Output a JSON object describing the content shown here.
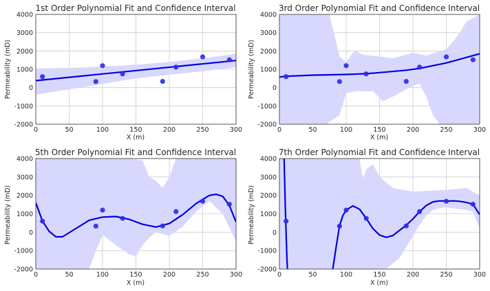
{
  "figure": {
    "background": "#ffffff",
    "axes_face": "#ffffff",
    "grid_color": "#cccccc",
    "fit_color": "#0000dd",
    "band_color": "#d8d8ff",
    "point_color": "#2a2ae8"
  },
  "chart_data": [
    {
      "type": "scatter",
      "title": "1st Order Polynomial Fit and Confidence Interval",
      "xlabel": "X (m)",
      "ylabel": "Permeability (mD)",
      "xlim": [
        0,
        300
      ],
      "ylim": [
        -2000,
        4000
      ],
      "xticks": [
        "0",
        "50",
        "100",
        "150",
        "200",
        "250",
        "300"
      ],
      "yticks": [
        "-2000",
        "-1000",
        "0",
        "1000",
        "2000",
        "3000",
        "4000"
      ],
      "grid": true,
      "points": {
        "x": [
          10,
          90,
          100,
          130,
          190,
          210,
          250,
          290
        ],
        "y": [
          600,
          330,
          1200,
          750,
          340,
          1120,
          1680,
          1520
        ]
      },
      "fit": {
        "x": [
          0,
          300
        ],
        "y": [
          380,
          1480
        ]
      },
      "band_upper": {
        "x": [
          0,
          50,
          100,
          150,
          200,
          250,
          300
        ],
        "y": [
          1050,
          1080,
          1150,
          1250,
          1400,
          1600,
          1850
        ]
      },
      "band_lower": {
        "x": [
          0,
          50,
          100,
          150,
          200,
          250,
          300
        ],
        "y": [
          -380,
          -100,
          200,
          500,
          700,
          900,
          1100
        ]
      }
    },
    {
      "type": "scatter",
      "title": "3rd Order Polynomial Fit and Confidence Interval",
      "xlabel": "X (m)",
      "ylabel": "Permeability (mD)",
      "xlim": [
        0,
        300
      ],
      "ylim": [
        -2000,
        4000
      ],
      "xticks": [
        "0",
        "50",
        "100",
        "150",
        "200",
        "250",
        "300"
      ],
      "yticks": [
        "-2000",
        "-1000",
        "0",
        "1000",
        "2000",
        "3000",
        "4000"
      ],
      "grid": true,
      "points": {
        "x": [
          10,
          90,
          100,
          130,
          190,
          210,
          250,
          290
        ],
        "y": [
          600,
          330,
          1200,
          750,
          340,
          1120,
          1680,
          1520
        ]
      },
      "fit": {
        "x": [
          0,
          10,
          50,
          100,
          130,
          150,
          190,
          210,
          250,
          280,
          300
        ],
        "y": [
          580,
          620,
          680,
          720,
          760,
          820,
          950,
          1050,
          1350,
          1650,
          1850
        ]
      },
      "band_upper": {
        "x": [
          0,
          60,
          75,
          90,
          100,
          110,
          115,
          125,
          150,
          170,
          200,
          220,
          250,
          260,
          270,
          280,
          300
        ],
        "y": [
          4000,
          4000,
          4000,
          1700,
          1400,
          1900,
          2000,
          1800,
          1700,
          1600,
          1900,
          1750,
          2100,
          2500,
          3000,
          3600,
          4000
        ]
      },
      "band_lower": {
        "x": [
          0,
          50,
          70,
          90,
          100,
          115,
          140,
          155,
          175,
          200,
          210,
          220,
          230,
          240,
          250,
          270,
          300
        ],
        "y": [
          -2000,
          -2000,
          -2000,
          -1500,
          -300,
          -200,
          -200,
          -750,
          -400,
          100,
          200,
          -500,
          -1500,
          -2000,
          -2000,
          -2000,
          -2000
        ]
      }
    },
    {
      "type": "scatter",
      "title": "5th Order Polynomial Fit and Confidence Interval",
      "xlabel": "X (m)",
      "ylabel": "Permeability (mD)",
      "xlim": [
        0,
        300
      ],
      "ylim": [
        -2000,
        4000
      ],
      "xticks": [
        "0",
        "50",
        "100",
        "150",
        "200",
        "250",
        "300"
      ],
      "yticks": [
        "-2000",
        "-1000",
        "0",
        "1000",
        "2000",
        "3000",
        "4000"
      ],
      "grid": true,
      "points": {
        "x": [
          10,
          90,
          100,
          130,
          190,
          210,
          250,
          290
        ],
        "y": [
          600,
          330,
          1200,
          750,
          340,
          1120,
          1680,
          1520
        ]
      },
      "fit": {
        "x": [
          0,
          10,
          20,
          30,
          40,
          60,
          80,
          100,
          120,
          140,
          160,
          180,
          200,
          220,
          240,
          260,
          270,
          280,
          290,
          300
        ],
        "y": [
          1600,
          600,
          50,
          -250,
          -250,
          200,
          650,
          820,
          850,
          700,
          430,
          280,
          470,
          950,
          1550,
          2000,
          2060,
          1950,
          1450,
          550
        ]
      },
      "band_upper": {
        "x": [
          0,
          30,
          40,
          60,
          80,
          100,
          120,
          140,
          160,
          170,
          180,
          190,
          200,
          210,
          220,
          240,
          260,
          280,
          300
        ],
        "y": [
          4000,
          4000,
          4000,
          4000,
          4000,
          4000,
          4000,
          4000,
          3900,
          3000,
          2800,
          2400,
          3000,
          4000,
          4000,
          4000,
          4000,
          4000,
          4000
        ]
      },
      "band_lower": {
        "x": [
          0,
          20,
          40,
          60,
          78,
          80,
          90,
          100,
          120,
          140,
          150,
          160,
          170,
          180,
          200,
          220,
          240,
          260,
          280,
          300
        ],
        "y": [
          -2000,
          -2000,
          -2000,
          -2000,
          -2000,
          -2000,
          -1000,
          -150,
          -700,
          -1200,
          -1300,
          -700,
          -300,
          0,
          -200,
          300,
          1100,
          1700,
          1000,
          -500
        ]
      }
    },
    {
      "type": "scatter",
      "title": "7th Order Polynomial Fit and Confidence Interval",
      "xlabel": "X (m)",
      "ylabel": "Permeability (mD)",
      "xlim": [
        0,
        300
      ],
      "ylim": [
        -2000,
        4000
      ],
      "xticks": [
        "0",
        "50",
        "100",
        "150",
        "200",
        "250",
        "300"
      ],
      "yticks": [
        "-2000",
        "-1000",
        "0",
        "1000",
        "2000",
        "3000",
        "4000"
      ],
      "grid": true,
      "points": {
        "x": [
          10,
          90,
          100,
          130,
          190,
          210,
          250,
          290
        ],
        "y": [
          600,
          330,
          1200,
          750,
          340,
          1120,
          1680,
          1520
        ]
      },
      "fit_segments": [
        {
          "x": [
            7,
            8,
            9,
            10,
            11,
            12
          ],
          "y": [
            4000,
            2500,
            1200,
            0,
            -1200,
            -2000
          ]
        },
        {
          "x": [
            80,
            85,
            90,
            95,
            100,
            110,
            120,
            130,
            140,
            150,
            160,
            170,
            180,
            190,
            200,
            210,
            220,
            230,
            240,
            250,
            260,
            270,
            280,
            290,
            300
          ],
          "y": [
            -2000,
            -800,
            330,
            900,
            1200,
            1430,
            1250,
            750,
            200,
            -150,
            -280,
            -180,
            100,
            380,
            720,
            1120,
            1450,
            1650,
            1700,
            1690,
            1700,
            1680,
            1620,
            1520,
            950
          ]
        }
      ],
      "band_upper": {
        "x": [
          0,
          20,
          30,
          40,
          50,
          60,
          70,
          80,
          90,
          100,
          110,
          120,
          125,
          130,
          140,
          150,
          170,
          200,
          250,
          280,
          300
        ],
        "y": [
          4000,
          4000,
          4000,
          4000,
          4000,
          4000,
          4000,
          4000,
          4000,
          4000,
          4000,
          4000,
          2900,
          3400,
          3700,
          3000,
          2400,
          2200,
          2300,
          2400,
          2000
        ]
      },
      "band_lower": {
        "x": [
          0,
          20,
          40,
          60,
          70,
          80,
          90,
          100,
          110,
          120,
          130,
          140,
          150,
          160,
          170,
          180,
          190,
          200,
          210,
          220,
          230,
          240,
          250,
          260,
          270,
          280,
          290,
          300
        ],
        "y": [
          -2000,
          -2000,
          -2000,
          -2000,
          -2000,
          -2000,
          -2000,
          -2000,
          -2000,
          -2000,
          -2000,
          -2000,
          -2000,
          -2000,
          -1700,
          -1400,
          -800,
          -200,
          400,
          900,
          1200,
          1300,
          1350,
          1300,
          1250,
          1200,
          1100,
          200
        ]
      }
    }
  ]
}
